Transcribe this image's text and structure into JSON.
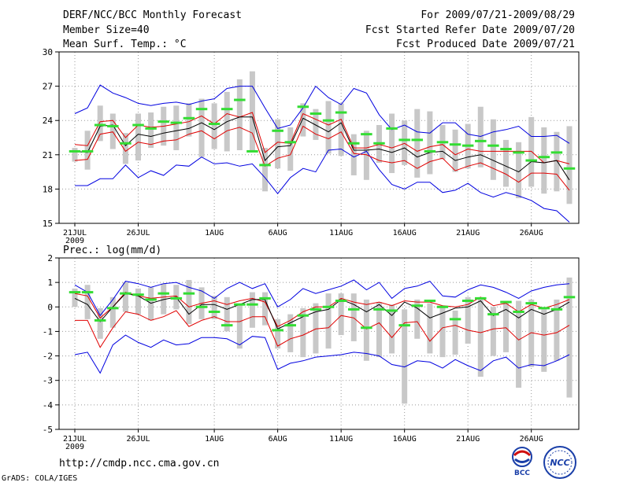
{
  "header": {
    "title": "DERF/NCC/BCC Monthly Forecast",
    "member_size": "Member Size=40",
    "variable": "Mean Surf. Temp.: °C",
    "forecast_period": "For 2009/07/21-2009/08/29",
    "start_ref_date": "Fcst Started Refer Date 2009/07/20",
    "produced_date": "Fcst Produced Date 2009/07/21"
  },
  "footer": {
    "url": "http://cmdp.ncc.cma.gov.cn",
    "credit": "GrADS: COLA/IGES",
    "logo_bcc": "BCC",
    "logo_ncc": "NCC"
  },
  "colors": {
    "mean": "#000000",
    "spread": "#e00000",
    "extreme": "#0000e0",
    "climo": "#33dd33",
    "box": "#c8c8c8"
  },
  "chart_data": [
    {
      "type": "line",
      "title": "Mean Surf. Temp.: °C",
      "ylim": [
        15,
        30
      ],
      "yticks": [
        15,
        18,
        21,
        24,
        27,
        30
      ],
      "xlim": [
        0,
        39
      ],
      "xtick_pos": [
        0,
        5,
        11,
        16,
        21,
        26,
        31,
        36
      ],
      "xtick_labels": [
        "21JUL",
        "26JUL",
        "1AUG",
        "6AUG",
        "11AUG",
        "16AUG",
        "21AUG",
        "26AUG"
      ],
      "year_label": "2009",
      "series": [
        {
          "name": "max",
          "values": [
            18.3,
            18.3,
            18.9,
            18.9,
            20.1,
            19.0,
            19.6,
            19.2,
            20.1,
            20.0,
            20.8,
            20.2,
            20.3,
            20.0,
            20.2,
            19.0,
            17.6,
            19.0,
            19.8,
            19.5,
            21.4,
            21.5,
            20.8,
            21.3,
            19.7,
            18.4,
            18.0,
            18.6,
            18.6,
            17.7,
            17.9,
            18.5,
            17.7,
            17.3,
            17.7,
            17.4,
            17.0,
            16.3,
            16.1,
            15.1
          ]
        },
        {
          "name": "min",
          "values": [
            24.6,
            25.1,
            27.1,
            26.4,
            26.0,
            25.5,
            25.3,
            25.5,
            25.6,
            25.4,
            25.7,
            25.9,
            26.8,
            27.0,
            27.0,
            25.1,
            23.3,
            23.6,
            25.1,
            27.0,
            26.0,
            25.4,
            26.8,
            26.4,
            24.5,
            23.2,
            23.6,
            23.0,
            22.9,
            23.8,
            23.8,
            22.8,
            22.6,
            23.0,
            23.2,
            23.5,
            22.6,
            22.6,
            22.7,
            22.0
          ]
        },
        {
          "name": "upper",
          "values": [
            21.9,
            21.8,
            23.9,
            24.0,
            22.5,
            23.6,
            23.4,
            23.5,
            23.7,
            23.9,
            24.4,
            23.7,
            24.6,
            24.3,
            24.7,
            21.2,
            22.1,
            22.0,
            24.6,
            24.1,
            23.6,
            24.1,
            21.6,
            21.6,
            21.9,
            21.6,
            22.0,
            21.3,
            21.7,
            21.9,
            21.0,
            21.5,
            21.3,
            21.3,
            21.3,
            21.3,
            21.3,
            20.3,
            20.5,
            20.2
          ]
        },
        {
          "name": "mean",
          "values": [
            21.3,
            21.2,
            23.5,
            23.6,
            21.8,
            22.8,
            22.6,
            22.9,
            23.1,
            23.3,
            23.8,
            23.2,
            23.9,
            24.3,
            24.3,
            20.5,
            21.7,
            21.8,
            24.2,
            23.6,
            23.0,
            23.8,
            21.4,
            21.4,
            21.5,
            21.2,
            21.6,
            20.8,
            21.2,
            21.3,
            20.5,
            20.8,
            21.0,
            20.5,
            20.0,
            19.5,
            20.4,
            20.3,
            20.5,
            18.8
          ]
        },
        {
          "name": "lower",
          "values": [
            20.5,
            20.6,
            22.8,
            23.0,
            21.3,
            22.1,
            21.9,
            22.2,
            22.3,
            22.8,
            23.1,
            22.4,
            23.1,
            23.4,
            22.9,
            20.0,
            20.7,
            21.0,
            23.5,
            22.8,
            22.4,
            23.0,
            21.1,
            21.0,
            20.5,
            20.3,
            20.5,
            19.8,
            20.4,
            20.7,
            19.6,
            20.0,
            20.3,
            19.8,
            19.3,
            18.6,
            19.4,
            19.4,
            19.3,
            17.9
          ]
        }
      ],
      "climo": [
        21.3,
        21.3,
        23.6,
        23.5,
        22.0,
        23.6,
        23.3,
        23.9,
        23.8,
        24.2,
        25.0,
        23.7,
        25.0,
        25.8,
        21.3,
        20.1,
        23.1,
        22.1,
        25.2,
        24.6,
        24.0,
        24.7,
        22.0,
        22.8,
        22.0,
        23.3,
        22.3,
        22.3,
        21.3,
        22.1,
        21.9,
        21.8,
        22.2,
        21.8,
        21.5,
        21.2,
        20.5,
        20.8,
        21.2,
        19.8
      ],
      "boxes": [
        [
          20.4,
          21.6
        ],
        [
          19.7,
          23.1
        ],
        [
          22.2,
          25.3
        ],
        [
          21.5,
          24.6
        ],
        [
          20.2,
          22.9
        ],
        [
          20.5,
          24.6
        ],
        [
          21.6,
          24.7
        ],
        [
          21.8,
          25.2
        ],
        [
          21.4,
          25.3
        ],
        [
          22.6,
          25.5
        ],
        [
          20.8,
          25.9
        ],
        [
          21.5,
          25.5
        ],
        [
          21.3,
          26.5
        ],
        [
          21.4,
          27.6
        ],
        [
          21.3,
          28.3
        ],
        [
          17.8,
          21.6
        ],
        [
          19.8,
          24.1
        ],
        [
          19.6,
          23.4
        ],
        [
          22.6,
          25.5
        ],
        [
          22.3,
          25.0
        ],
        [
          21.1,
          25.7
        ],
        [
          20.9,
          25.5
        ],
        [
          19.2,
          22.8
        ],
        [
          18.8,
          23.1
        ],
        [
          20.3,
          23.6
        ],
        [
          19.4,
          24.6
        ],
        [
          20.1,
          24.0
        ],
        [
          19.0,
          25.0
        ],
        [
          19.3,
          24.8
        ],
        [
          20.6,
          23.6
        ],
        [
          19.5,
          23.2
        ],
        [
          19.8,
          23.7
        ],
        [
          19.9,
          25.2
        ],
        [
          18.8,
          24.1
        ],
        [
          18.2,
          22.3
        ],
        [
          17.2,
          22.1
        ],
        [
          18.2,
          24.3
        ],
        [
          17.6,
          23.4
        ],
        [
          17.8,
          23.0
        ],
        [
          16.7,
          23.5
        ]
      ]
    },
    {
      "type": "line",
      "title": "Prec.: log(mm/d)",
      "ylim": [
        -5,
        2
      ],
      "yticks": [
        -5,
        -4,
        -3,
        -2,
        -1,
        0,
        1,
        2
      ],
      "xlim": [
        0,
        39
      ],
      "xtick_pos": [
        0,
        5,
        11,
        16,
        21,
        26,
        31,
        36
      ],
      "xtick_labels": [
        "21JUL",
        "26JUL",
        "1AUG",
        "6AUG",
        "11AUG",
        "16AUG",
        "21AUG",
        "26AUG"
      ],
      "year_label": "2009",
      "series": [
        {
          "name": "max",
          "values": [
            -1.95,
            -1.85,
            -2.7,
            -1.55,
            -1.15,
            -1.45,
            -1.65,
            -1.35,
            -1.55,
            -1.5,
            -1.25,
            -1.25,
            -1.3,
            -1.55,
            -1.2,
            -1.25,
            -2.55,
            -2.3,
            -2.2,
            -2.05,
            -2.0,
            -1.95,
            -1.85,
            -1.9,
            -2.0,
            -2.35,
            -2.45,
            -2.2,
            -2.25,
            -2.5,
            -2.15,
            -2.4,
            -2.6,
            -2.2,
            -2.05,
            -2.5,
            -2.35,
            -2.4,
            -2.2,
            -1.95
          ]
        },
        {
          "name": "min",
          "values": [
            0.9,
            0.6,
            -0.35,
            0.3,
            1.05,
            0.95,
            0.8,
            0.95,
            1.0,
            0.8,
            0.65,
            0.35,
            0.75,
            1.0,
            0.75,
            0.95,
            0.0,
            0.3,
            0.75,
            0.55,
            0.7,
            0.85,
            1.1,
            0.7,
            1.0,
            0.35,
            0.75,
            0.85,
            1.05,
            0.45,
            0.4,
            0.7,
            0.9,
            0.8,
            0.6,
            0.35,
            0.65,
            0.8,
            0.9,
            0.95
          ]
        },
        {
          "name": "upper",
          "values": [
            0.55,
            0.45,
            -0.45,
            0.0,
            0.6,
            0.45,
            0.35,
            0.4,
            0.45,
            0.0,
            0.15,
            0.25,
            0.1,
            0.25,
            0.35,
            0.2,
            -0.8,
            -0.55,
            -0.2,
            0.0,
            0.0,
            0.35,
            0.2,
            0.1,
            0.2,
            0.05,
            0.25,
            0.2,
            0.2,
            0.05,
            0.0,
            0.1,
            0.4,
            0.05,
            0.15,
            -0.2,
            0.1,
            -0.05,
            0.1,
            0.3
          ]
        },
        {
          "name": "mean",
          "values": [
            0.35,
            0.1,
            -0.6,
            0.0,
            0.55,
            0.45,
            0.15,
            0.3,
            0.4,
            -0.3,
            0.1,
            0.1,
            -0.1,
            0.1,
            0.3,
            0.3,
            -0.9,
            -0.65,
            -0.4,
            -0.2,
            -0.1,
            0.3,
            0.1,
            -0.2,
            0.1,
            -0.35,
            0.2,
            -0.05,
            -0.45,
            -0.25,
            -0.05,
            0.0,
            0.25,
            -0.35,
            -0.1,
            -0.45,
            -0.1,
            -0.3,
            -0.1,
            0.2
          ]
        },
        {
          "name": "lower",
          "values": [
            -0.55,
            -0.55,
            -1.65,
            -0.85,
            -0.2,
            -0.3,
            -0.55,
            -0.4,
            -0.15,
            -0.8,
            -0.55,
            -0.4,
            -0.6,
            -0.6,
            -0.4,
            -0.4,
            -1.6,
            -1.3,
            -1.15,
            -0.9,
            -0.85,
            -0.35,
            -0.45,
            -0.9,
            -0.65,
            -1.25,
            -0.65,
            -0.6,
            -1.4,
            -0.85,
            -0.75,
            -0.95,
            -1.05,
            -0.9,
            -0.85,
            -1.35,
            -1.05,
            -1.15,
            -1.05,
            -0.75
          ]
        }
      ],
      "climo": [
        0.6,
        0.6,
        -0.55,
        -0.05,
        0.55,
        0.5,
        0.3,
        0.55,
        0.35,
        0.55,
        0.0,
        -0.2,
        -0.75,
        0.1,
        0.1,
        0.35,
        -0.95,
        -0.75,
        -0.35,
        -0.1,
        0.0,
        0.25,
        -0.1,
        -0.85,
        -0.1,
        -0.15,
        -0.75,
        0.05,
        0.25,
        0.0,
        -0.5,
        0.25,
        0.35,
        -0.3,
        0.2,
        -0.2,
        0.15,
        -0.05,
        -0.1,
        0.4
      ],
      "boxes": [
        [
          0.0,
          0.75
        ],
        [
          -0.5,
          0.9
        ],
        [
          -1.3,
          -0.05
        ],
        [
          -0.85,
          0.4
        ],
        [
          -0.2,
          1.0
        ],
        [
          -0.3,
          0.75
        ],
        [
          -0.55,
          0.8
        ],
        [
          -0.3,
          0.95
        ],
        [
          -0.1,
          0.9
        ],
        [
          -0.7,
          1.1
        ],
        [
          -0.5,
          0.8
        ],
        [
          -0.5,
          0.45
        ],
        [
          -1.0,
          0.4
        ],
        [
          -1.7,
          0.1
        ],
        [
          -0.85,
          0.6
        ],
        [
          -0.75,
          0.6
        ],
        [
          -1.7,
          -0.5
        ],
        [
          -1.85,
          -0.3
        ],
        [
          -2.05,
          -0.05
        ],
        [
          -1.9,
          0.15
        ],
        [
          -1.7,
          0.55
        ],
        [
          -1.15,
          0.55
        ],
        [
          -1.4,
          0.55
        ],
        [
          -2.2,
          0.3
        ],
        [
          -2.05,
          0.2
        ],
        [
          -1.9,
          0.1
        ],
        [
          -3.95,
          -0.1
        ],
        [
          -1.3,
          0.3
        ],
        [
          -1.9,
          0.15
        ],
        [
          -2.05,
          0.0
        ],
        [
          -1.95,
          -0.15
        ],
        [
          -1.5,
          0.4
        ],
        [
          -2.85,
          0.4
        ],
        [
          -2.0,
          0.0
        ],
        [
          -1.85,
          0.25
        ],
        [
          -3.3,
          0.25
        ],
        [
          -2.45,
          0.3
        ],
        [
          -2.65,
          -0.1
        ],
        [
          -2.2,
          0.3
        ],
        [
          -3.7,
          1.2
        ]
      ]
    }
  ]
}
